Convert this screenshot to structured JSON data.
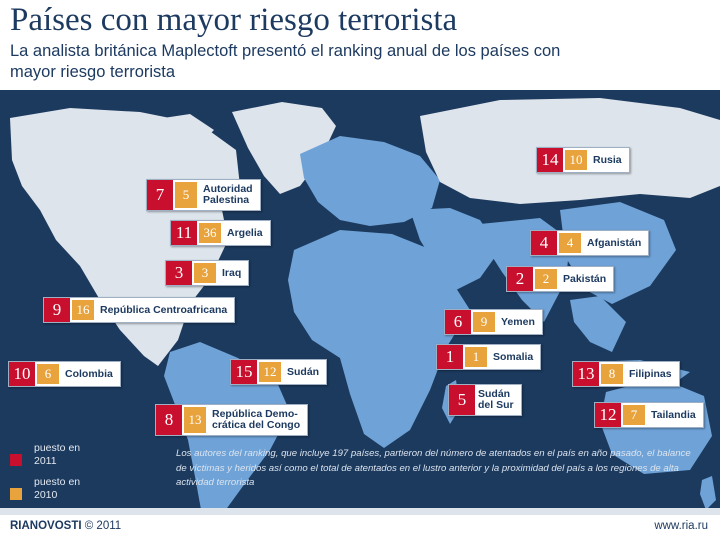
{
  "title": "Países con mayor riesgo terrorista",
  "subtitle": "La analista británica Maplectoft presentó el ranking anual de los países con mayor riesgo terrorista",
  "colors": {
    "ocean": "#1c3a5e",
    "highlight": "#6fa3d8",
    "land": "#dde4ec",
    "rank2011": "#c8102e",
    "rank2010": "#e8a33c"
  },
  "countries": [
    {
      "name": "Rusia",
      "rank_2011": "14",
      "rank_2010": "10"
    },
    {
      "name": "Autoridad\nPalestina",
      "rank_2011": "7",
      "rank_2010": "5"
    },
    {
      "name": "Argelia",
      "rank_2011": "11",
      "rank_2010": "36"
    },
    {
      "name": "Afganistán",
      "rank_2011": "4",
      "rank_2010": "4"
    },
    {
      "name": "Iraq",
      "rank_2011": "3",
      "rank_2010": "3"
    },
    {
      "name": "Pakistán",
      "rank_2011": "2",
      "rank_2010": "2"
    },
    {
      "name": "República Centroafricana",
      "rank_2011": "9",
      "rank_2010": "16"
    },
    {
      "name": "Yemen",
      "rank_2011": "6",
      "rank_2010": "9"
    },
    {
      "name": "Somalia",
      "rank_2011": "1",
      "rank_2010": "1"
    },
    {
      "name": "Colombia",
      "rank_2011": "10",
      "rank_2010": "6"
    },
    {
      "name": "Sudán",
      "rank_2011": "15",
      "rank_2010": "12"
    },
    {
      "name": "Filipinas",
      "rank_2011": "13",
      "rank_2010": "8"
    },
    {
      "name": "Sudán\ndel Sur",
      "rank_2011": "5",
      "rank_2010": ""
    },
    {
      "name": "República Demo-\ncrática del Congo",
      "rank_2011": "8",
      "rank_2010": "13"
    },
    {
      "name": "Tailandia",
      "rank_2011": "12",
      "rank_2010": "7"
    }
  ],
  "legend": {
    "label_2011": "puesto en 2011",
    "label_2010": "puesto en 2010"
  },
  "note": "Los autores del ranking, que incluye 197 países, partieron del número de atentados en el país en año pasado, el balance de víctimas y heridos así como el total de atentados en el lustro anterior y la proximidad del país a los regiones de alta actividad terrorista",
  "footer": {
    "brand_bold": "RIANOVOSTI",
    "brand_rest": " © 2011",
    "url": "www.ria.ru"
  }
}
